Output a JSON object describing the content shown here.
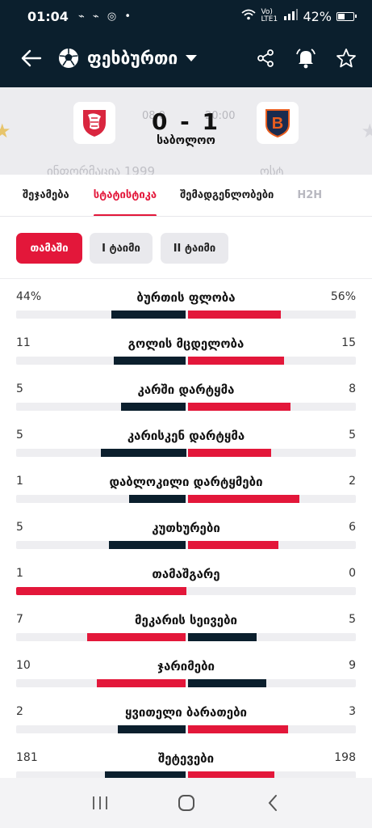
{
  "status_bar": {
    "time": "01:04",
    "notifications": "⌁ ⌁ ◎ •",
    "network": "Vo) LTE1",
    "battery": "42%"
  },
  "appbar": {
    "sport": "ფეხბურთი",
    "icons": [
      "back-arrow-icon",
      "soccer-ball-icon",
      "chevron-down-icon",
      "share-icon",
      "bell-icon",
      "star-icon"
    ]
  },
  "match": {
    "score": "0 - 1",
    "status": "საბოლოო",
    "ghost_date": "08.0",
    "ghost_time": "20:00",
    "ghost_left": "ინფორმაცია 1999",
    "ghost_right": "ოსტ"
  },
  "tabs": [
    {
      "label": "შეჯამება"
    },
    {
      "label": "სტატისტიკა"
    },
    {
      "label": "შემადგენლობები"
    },
    {
      "label": "H2H"
    }
  ],
  "filters": [
    {
      "label": "თამაში"
    },
    {
      "label": "I ტაიმი"
    },
    {
      "label": "II ტაიმი"
    }
  ],
  "stats": [
    {
      "label": "ბურთის ფლობა",
      "home": "44%",
      "away": "56%",
      "home_value": 44,
      "away_value": 56
    },
    {
      "label": "გოლის მცდელობა",
      "home": "11",
      "away": "15",
      "home_value": 11,
      "away_value": 15
    },
    {
      "label": "კარში დარტყმა",
      "home": "5",
      "away": "8",
      "home_value": 5,
      "away_value": 8
    },
    {
      "label": "კარისკენ დარტყმა",
      "home": "5",
      "away": "5",
      "home_value": 5,
      "away_value": 5
    },
    {
      "label": "დაბლოკილი დარტყმები",
      "home": "1",
      "away": "2",
      "home_value": 1,
      "away_value": 2
    },
    {
      "label": "კუთხურები",
      "home": "5",
      "away": "6",
      "home_value": 5,
      "away_value": 6
    },
    {
      "label": "თამაშგარე",
      "home": "1",
      "away": "0",
      "home_value": 1,
      "away_value": 0
    },
    {
      "label": "მეკარის სეივები",
      "home": "7",
      "away": "5",
      "home_value": 7,
      "away_value": 5
    },
    {
      "label": "ჯარიმები",
      "home": "10",
      "away": "9",
      "home_value": 10,
      "away_value": 9
    },
    {
      "label": "ყვითელი ბარათები",
      "home": "2",
      "away": "3",
      "home_value": 2,
      "away_value": 3
    },
    {
      "label": "შეტევები",
      "home": "181",
      "away": "198",
      "home_value": 181,
      "away_value": 198
    }
  ],
  "colors": {
    "header_bg": "#0b1f2d",
    "accent": "#e3173a",
    "home_bar": "#0b1f2d",
    "away_bar": "#e3173a"
  },
  "navbar": {
    "icons": [
      "recents-icon",
      "home-icon",
      "back-icon"
    ]
  }
}
